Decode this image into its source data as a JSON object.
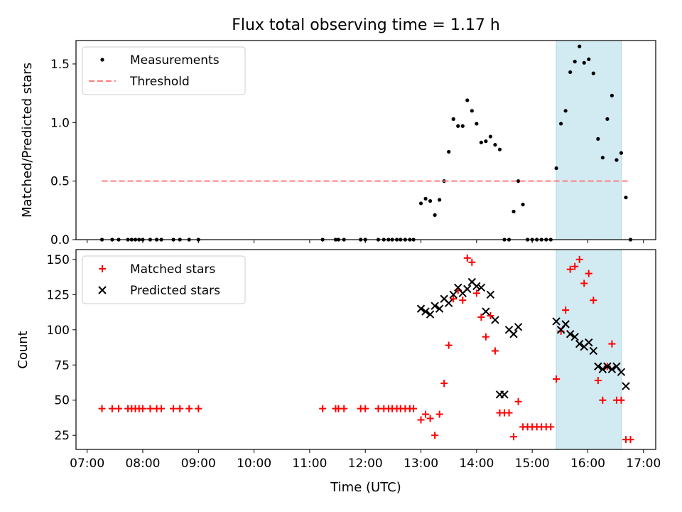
{
  "chart_data": {
    "type": "scatter",
    "title": "Flux total observing time = 1.17 h",
    "xlabel": "Time (UTC)",
    "xlim": [
      "07:00",
      "17:00"
    ],
    "xticks": [
      "07:00",
      "08:00",
      "09:00",
      "10:00",
      "11:00",
      "12:00",
      "13:00",
      "14:00",
      "15:00",
      "16:00",
      "17:00"
    ],
    "highlight": {
      "x_start": "15:26",
      "x_end": "16:36",
      "color": "#add8e6"
    },
    "panels": [
      {
        "id": "ratio",
        "ylabel": "Matched/Predicted stars",
        "ylim": [
          0,
          1.7
        ],
        "yticks": [
          "0.0",
          "0.5",
          "1.0",
          "1.5"
        ],
        "legend_position": "top-left",
        "series": [
          {
            "name": "Measurements",
            "marker": "dot",
            "color": "#000000",
            "x": [
              "07:16",
              "07:27",
              "07:34",
              "07:44",
              "07:48",
              "07:52",
              "07:56",
              "08:00",
              "08:08",
              "08:15",
              "08:20",
              "08:33",
              "08:40",
              "08:50",
              "09:00",
              "11:14",
              "11:28",
              "11:31",
              "11:37",
              "11:55",
              "12:00",
              "12:14",
              "12:20",
              "12:25",
              "12:29",
              "12:34",
              "12:38",
              "12:43",
              "12:48",
              "12:52",
              "13:00",
              "13:05",
              "13:10",
              "13:15",
              "13:20",
              "13:25",
              "13:30",
              "13:35",
              "13:40",
              "13:45",
              "13:50",
              "13:55",
              "14:00",
              "14:05",
              "14:10",
              "14:15",
              "14:20",
              "14:25",
              "14:30",
              "14:35",
              "14:40",
              "14:45",
              "14:50",
              "14:55",
              "15:00",
              "15:05",
              "15:10",
              "15:15",
              "15:20",
              "15:26",
              "15:31",
              "15:36",
              "15:41",
              "15:46",
              "15:51",
              "15:56",
              "16:01",
              "16:06",
              "16:11",
              "16:16",
              "16:21",
              "16:26",
              "16:31",
              "16:36",
              "16:41",
              "16:46"
            ],
            "y": [
              0,
              0,
              0,
              0,
              0,
              0,
              0,
              0,
              0,
              0,
              0,
              0,
              0,
              0,
              0,
              0,
              0,
              0,
              0,
              0,
              0,
              0,
              0,
              0,
              0,
              0,
              0,
              0,
              0,
              0,
              0.31,
              0.35,
              0.33,
              0.21,
              0.34,
              0.5,
              0.75,
              1.03,
              0.97,
              0.97,
              1.19,
              1.1,
              0.99,
              0.83,
              0.84,
              0.88,
              0.81,
              0.77,
              0,
              0,
              0.24,
              0.5,
              0.3,
              0,
              0,
              0,
              0,
              0,
              0,
              0.61,
              0.99,
              1.1,
              1.43,
              1.52,
              1.65,
              1.51,
              1.54,
              1.42,
              0.86,
              0.7,
              1.03,
              1.23,
              0.68,
              0.74,
              0.36,
              0
            ]
          },
          {
            "name": "Threshold",
            "marker": "dashed-line",
            "color": "#ff7f7f",
            "x": [
              "07:16",
              "16:46"
            ],
            "y": [
              0.5,
              0.5
            ]
          }
        ]
      },
      {
        "id": "count",
        "ylabel": "Count",
        "ylim": [
          15,
          157
        ],
        "yticks": [
          "25",
          "50",
          "75",
          "100",
          "125",
          "150"
        ],
        "legend_position": "top-left",
        "series": [
          {
            "name": "Matched stars",
            "marker": "plus",
            "color": "#ff0000",
            "x": [
              "07:16",
              "07:27",
              "07:34",
              "07:44",
              "07:48",
              "07:52",
              "07:56",
              "08:00",
              "08:08",
              "08:15",
              "08:20",
              "08:33",
              "08:40",
              "08:50",
              "09:00",
              "11:14",
              "11:28",
              "11:31",
              "11:37",
              "11:55",
              "12:00",
              "12:14",
              "12:20",
              "12:25",
              "12:29",
              "12:34",
              "12:38",
              "12:43",
              "12:48",
              "12:52",
              "13:00",
              "13:05",
              "13:10",
              "13:15",
              "13:20",
              "13:25",
              "13:30",
              "13:35",
              "13:40",
              "13:45",
              "13:50",
              "13:55",
              "14:00",
              "14:05",
              "14:10",
              "14:15",
              "14:20",
              "14:25",
              "14:30",
              "14:35",
              "14:40",
              "14:45",
              "14:50",
              "14:55",
              "15:00",
              "15:05",
              "15:10",
              "15:15",
              "15:20",
              "15:26",
              "15:31",
              "15:36",
              "15:41",
              "15:46",
              "15:51",
              "15:56",
              "16:01",
              "16:06",
              "16:11",
              "16:16",
              "16:21",
              "16:26",
              "16:31",
              "16:36",
              "16:41",
              "16:46"
            ],
            "y": [
              44,
              44,
              44,
              44,
              44,
              44,
              44,
              44,
              44,
              44,
              44,
              44,
              44,
              44,
              44,
              44,
              44,
              44,
              44,
              44,
              44,
              44,
              44,
              44,
              44,
              44,
              44,
              44,
              44,
              44,
              36,
              40,
              37,
              25,
              40,
              62,
              89,
              122,
              128,
              121,
              151,
              148,
              126,
              109,
              95,
              110,
              85,
              41,
              41,
              41,
              24,
              49,
              31,
              31,
              31,
              31,
              31,
              31,
              31,
              65,
              99,
              114,
              143,
              145,
              150,
              133,
              140,
              121,
              64,
              50,
              74,
              90,
              50,
              50,
              22,
              22
            ]
          },
          {
            "name": "Predicted stars",
            "marker": "x",
            "color": "#000000",
            "x": [
              "13:00",
              "13:05",
              "13:10",
              "13:15",
              "13:20",
              "13:25",
              "13:30",
              "13:35",
              "13:40",
              "13:45",
              "13:50",
              "13:55",
              "14:00",
              "14:05",
              "14:10",
              "14:15",
              "14:20",
              "14:25",
              "14:30",
              "14:35",
              "14:40",
              "14:45",
              "15:26",
              "15:31",
              "15:36",
              "15:41",
              "15:46",
              "15:51",
              "15:56",
              "16:01",
              "16:06",
              "16:11",
              "16:16",
              "16:21",
              "16:26",
              "16:31",
              "16:36",
              "16:41"
            ],
            "y": [
              115,
              113,
              111,
              117,
              115,
              122,
              119,
              125,
              130,
              126,
              129,
              134,
              131,
              130,
              113,
              125,
              107,
              54,
              54,
              100,
              97,
              102,
              106,
              100,
              104,
              97,
              95,
              90,
              88,
              91,
              85,
              74,
              72,
              74,
              72,
              74,
              70,
              60
            ]
          }
        ]
      }
    ]
  }
}
